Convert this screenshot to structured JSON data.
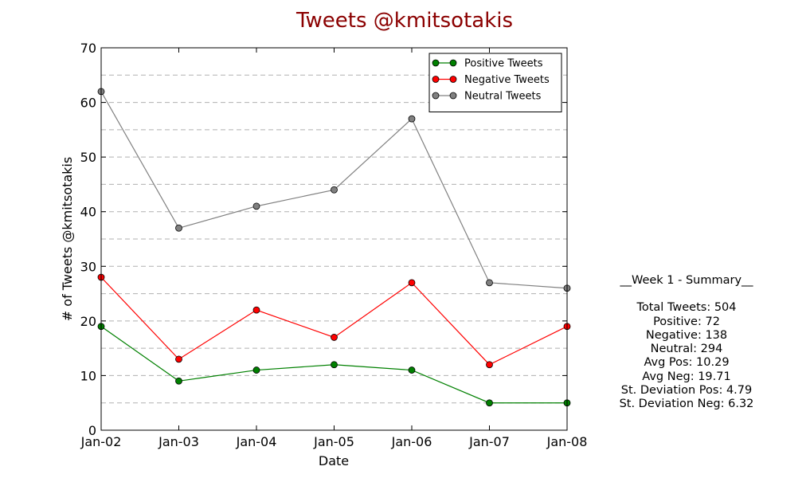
{
  "chart_data": {
    "type": "line",
    "title": "Tweets @kmitsotakis",
    "xlabel": "Date",
    "ylabel": "# of Tweets @kmitsotakis",
    "categories": [
      "Jan-02",
      "Jan-03",
      "Jan-04",
      "Jan-05",
      "Jan-06",
      "Jan-07",
      "Jan-08"
    ],
    "ylim": [
      0,
      70
    ],
    "yticks": [
      0,
      10,
      20,
      30,
      40,
      50,
      60,
      70
    ],
    "grid": "horizontal dashed",
    "legend_position": "top-right",
    "series": [
      {
        "name": "Positive Tweets",
        "color": "#008000",
        "values": [
          19,
          9,
          11,
          12,
          11,
          5,
          5
        ]
      },
      {
        "name": "Negative Tweets",
        "color": "#ff0000",
        "values": [
          28,
          13,
          22,
          17,
          27,
          12,
          19
        ]
      },
      {
        "name": "Neutral Tweets",
        "color": "#808080",
        "values": [
          62,
          37,
          41,
          44,
          57,
          27,
          26
        ]
      }
    ]
  },
  "summary": {
    "heading": "__Week 1 - Summary__",
    "total": "Total Tweets: 504",
    "positive": "Positive: 72",
    "negative": "Negative: 138",
    "neutral": "Neutral: 294",
    "avg_pos": "Avg Pos: 10.29",
    "avg_neg": "Avg Neg: 19.71",
    "std_pos": "St. Deviation Pos: 4.79",
    "std_neg": "St. Deviation Neg: 6.32"
  },
  "colors": {
    "title": "#8b0000",
    "axis": "#000000",
    "grid": "#b0b0b0"
  }
}
